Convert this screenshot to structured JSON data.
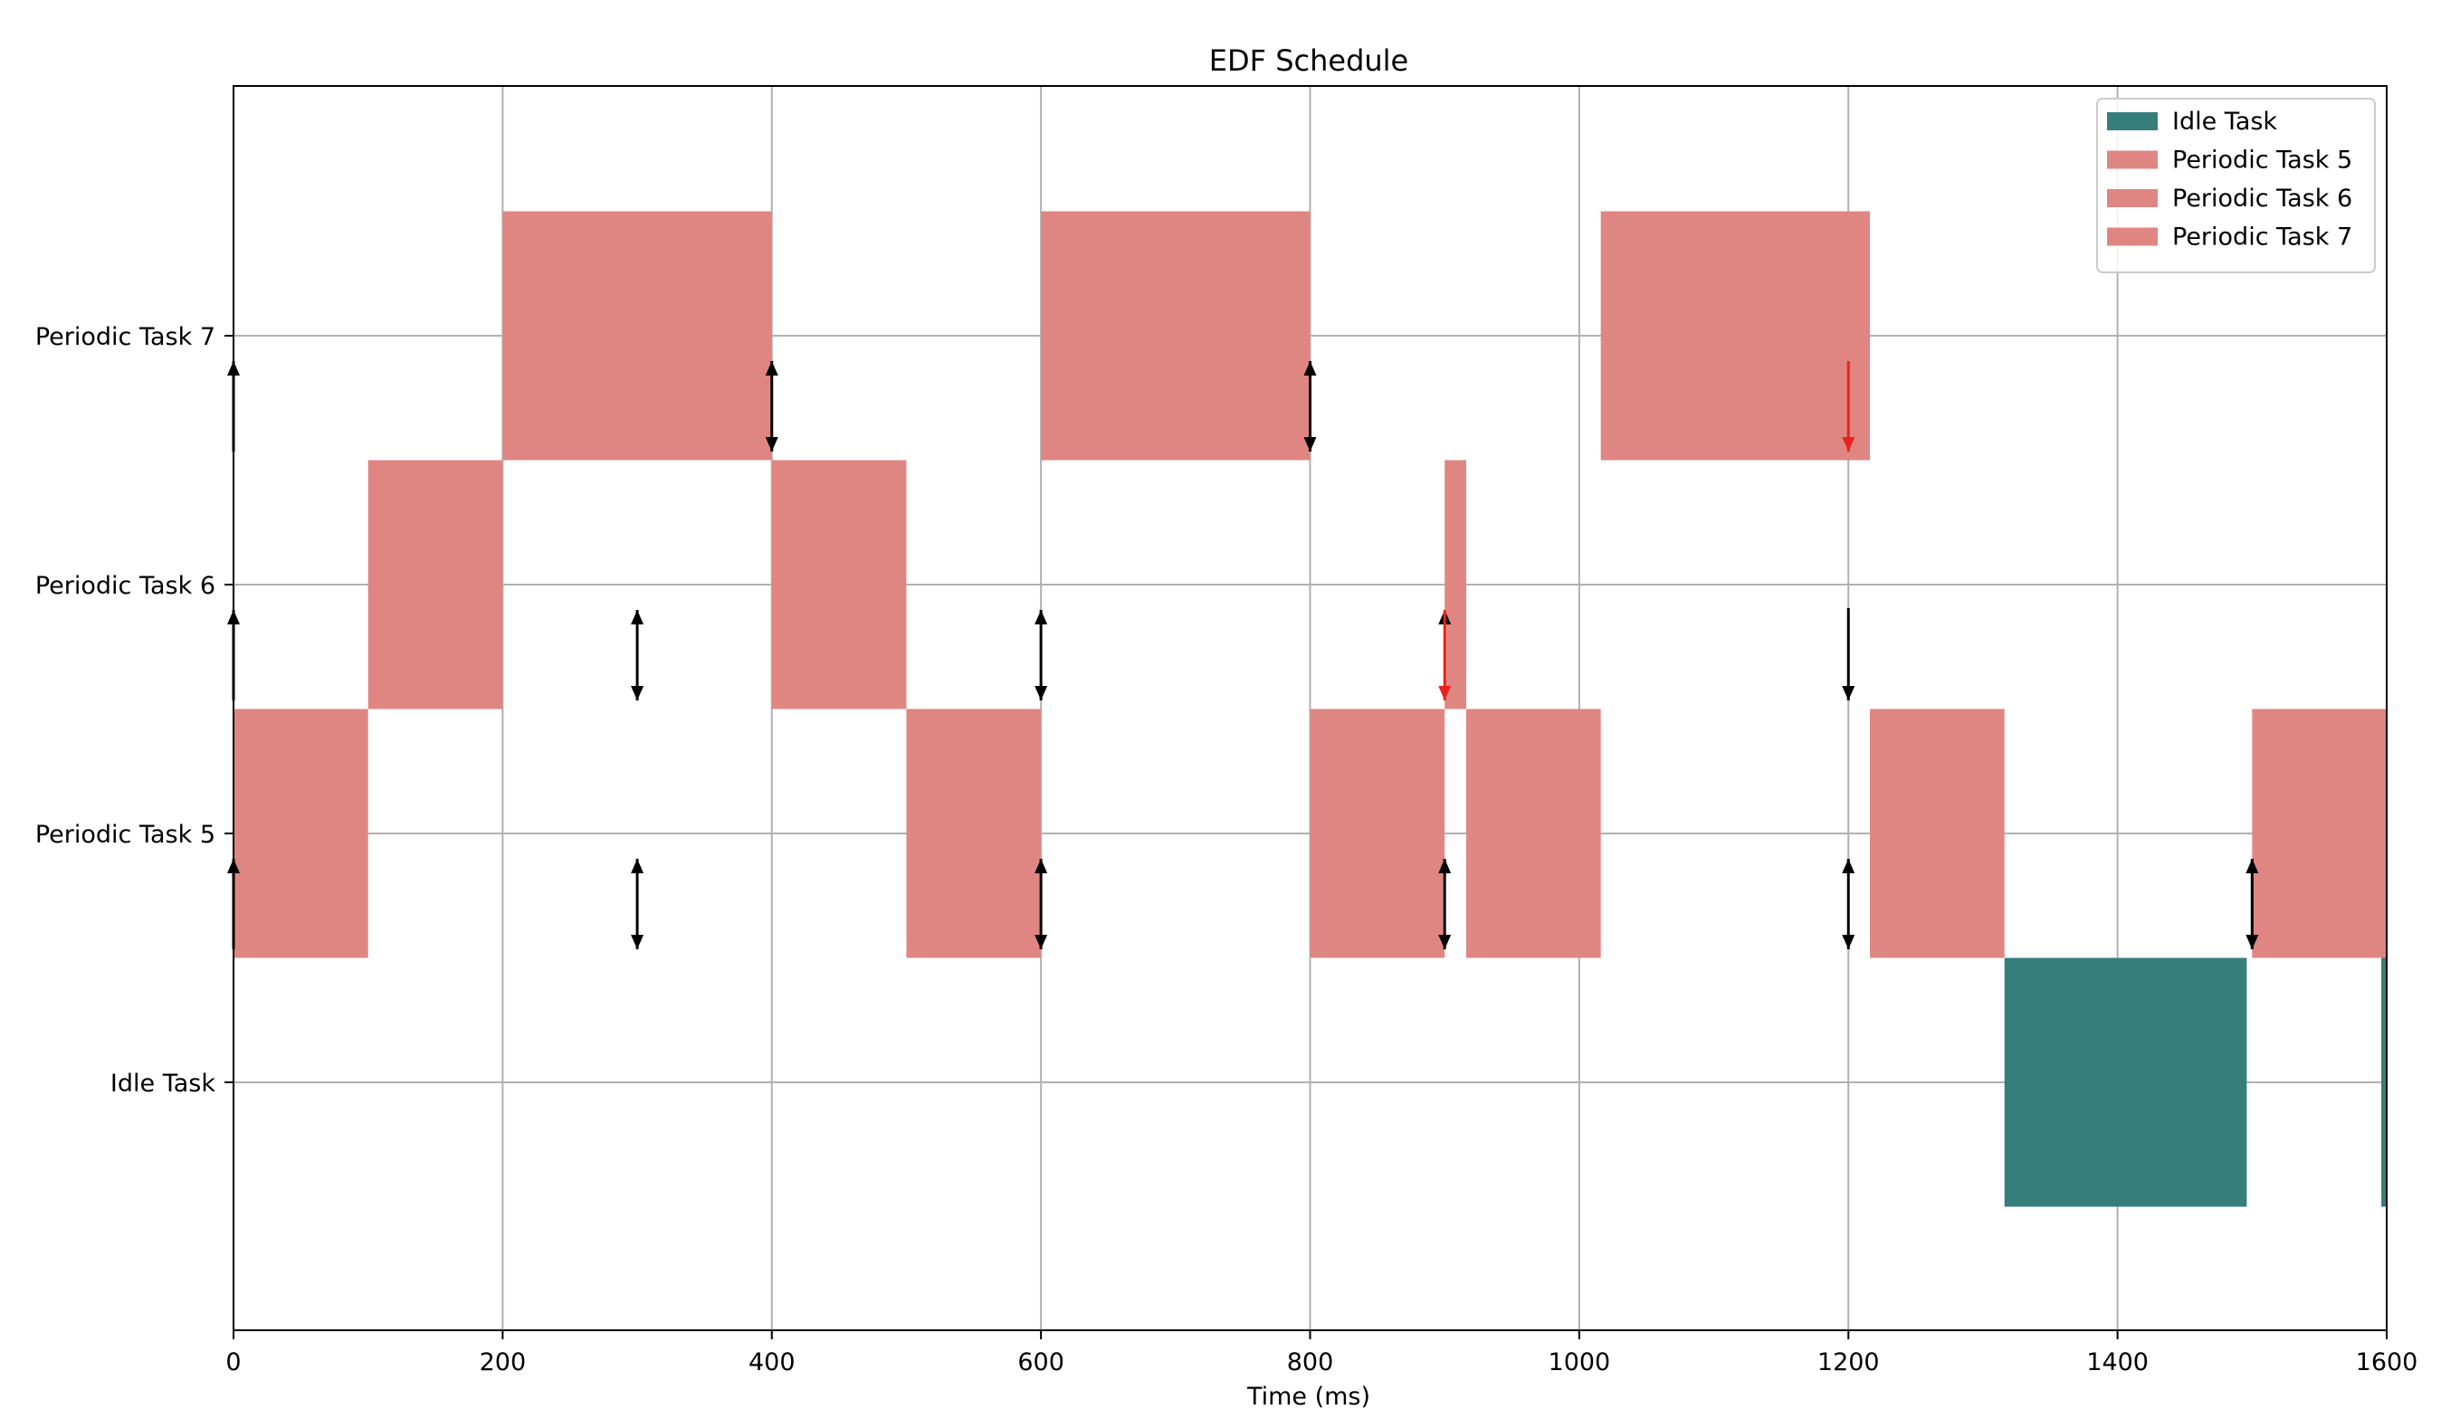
{
  "chart_data": {
    "type": "gantt",
    "title": "EDF Schedule",
    "xlabel": "Time (ms)",
    "ylabel": "",
    "xlim": [
      0,
      1600
    ],
    "x_ticks": [
      0,
      200,
      400,
      600,
      800,
      1000,
      1200,
      1400,
      1600
    ],
    "grid": true,
    "legend_position": "top-right",
    "tasks": [
      "Idle Task",
      "Periodic Task 5",
      "Periodic Task 6",
      "Periodic Task 7"
    ],
    "colors": {
      "Idle Task": "#367e7c",
      "Periodic Task 5": "#e08682",
      "Periodic Task 6": "#e08682",
      "Periodic Task 7": "#e08682",
      "release_arrow": "#000000",
      "deadline_miss_arrow": "#e8231b",
      "grid": "#b0b0b0"
    },
    "legend": [
      "Idle Task",
      "Periodic Task 5",
      "Periodic Task 6",
      "Periodic Task 7"
    ],
    "series": [
      {
        "name": "Periodic Task 7",
        "segments": [
          [
            200,
            400
          ],
          [
            600,
            800
          ],
          [
            1016,
            1216
          ]
        ],
        "release_and_deadline": [
          400,
          800
        ],
        "release_only": [
          0
        ],
        "deadline_miss": [
          1200
        ]
      },
      {
        "name": "Periodic Task 6",
        "segments": [
          [
            100,
            200
          ],
          [
            400,
            500
          ],
          [
            900,
            916
          ]
        ],
        "release_and_deadline": [
          300,
          600
        ],
        "release_only": [
          0
        ],
        "deadline_only": [
          1200
        ],
        "deadline_miss": [
          900
        ],
        "release_at_miss": [
          900
        ]
      },
      {
        "name": "Periodic Task 5",
        "segments": [
          [
            0,
            100
          ],
          [
            500,
            600
          ],
          [
            800,
            900
          ],
          [
            916,
            1016
          ],
          [
            1216,
            1316
          ],
          [
            1500,
            1600
          ]
        ],
        "release_and_deadline": [
          300,
          600,
          900,
          1200,
          1500
        ],
        "release_only": [
          0
        ]
      },
      {
        "name": "Idle Task",
        "segments": [
          [
            1316,
            1496
          ],
          [
            1596,
            1600
          ]
        ]
      }
    ]
  }
}
